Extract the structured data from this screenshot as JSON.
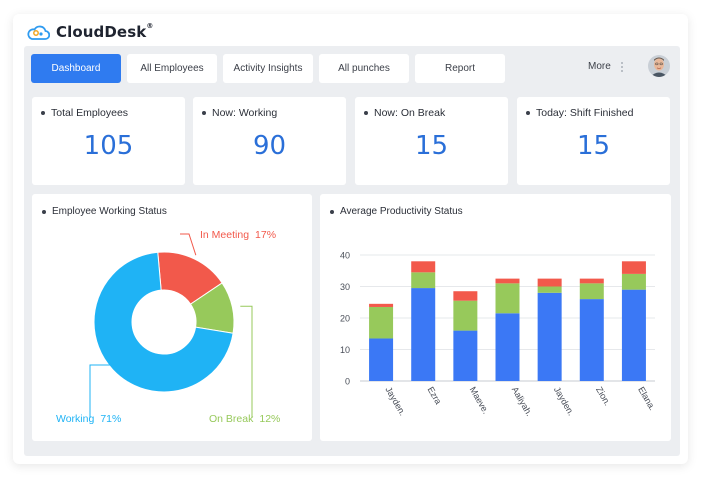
{
  "brand": {
    "name": "CloudDesk",
    "mark": "®"
  },
  "tabs": [
    {
      "label": "Dashboard",
      "active": true
    },
    {
      "label": "All Employees",
      "active": false
    },
    {
      "label": "Activity Insights",
      "active": false
    },
    {
      "label": "All punches",
      "active": false
    },
    {
      "label": "Report",
      "active": false
    }
  ],
  "header": {
    "more_label": "More",
    "avatar_icon": "user-avatar"
  },
  "stats": [
    {
      "label": "Total Employees",
      "value": "105"
    },
    {
      "label": "Now: Working",
      "value": "90"
    },
    {
      "label": "Now: On Break",
      "value": "15"
    },
    {
      "label": "Today: Shift Finished",
      "value": "15"
    }
  ],
  "colors": {
    "accent": "#2f7bf0",
    "working": "#1fb3f5",
    "on_break": "#97c95b",
    "in_meeting": "#f2594b",
    "bar_blue": "#3b78f5",
    "bar_green": "#97c95b",
    "bar_red": "#f2594b"
  },
  "chart_data": [
    {
      "type": "pie",
      "title": "Employee Working Status",
      "donut": true,
      "slices": [
        {
          "label": "In Meeting",
          "value": 17,
          "display": "17%",
          "color": "#f2594b"
        },
        {
          "label": "On Break",
          "value": 12,
          "display": "12%",
          "color": "#97c95b"
        },
        {
          "label": "Working",
          "value": 71,
          "display": "71%",
          "color": "#1fb3f5"
        }
      ]
    },
    {
      "type": "bar",
      "stacked": true,
      "title": "Average Productivity Status",
      "categories": [
        "Jayden.",
        "Ezra",
        "Maeve.",
        "Aaliyah.",
        "Jayden.",
        "Zion.",
        "Elana."
      ],
      "series": [
        {
          "values": [
            13.5,
            29.5,
            16,
            21.5,
            28,
            26,
            29
          ],
          "color": "#3b78f5"
        },
        {
          "values": [
            10,
            5,
            9.5,
            9.5,
            2,
            5,
            5
          ],
          "color": "#97c95b"
        },
        {
          "values": [
            1,
            3.5,
            3,
            1.5,
            2.5,
            1.5,
            4
          ],
          "color": "#f2594b"
        }
      ],
      "ylim": [
        0,
        40
      ],
      "yticks": [
        0,
        10,
        20,
        30,
        40
      ],
      "grid": true
    }
  ]
}
